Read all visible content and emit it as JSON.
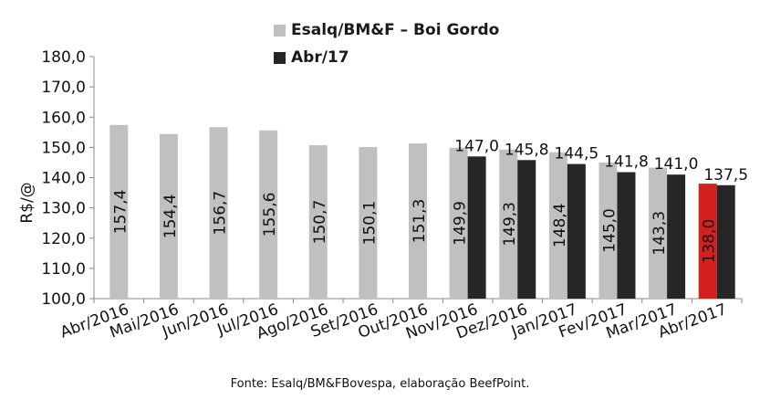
{
  "chart_data": {
    "type": "bar",
    "title": "",
    "xlabel": "",
    "ylabel": "R$/@",
    "ylim": [
      100,
      180
    ],
    "yticks": [
      "100,0",
      "110,0",
      "120,0",
      "130,0",
      "140,0",
      "150,0",
      "160,0",
      "170,0",
      "180,0"
    ],
    "categories": [
      "Abr/2016",
      "Mai/2016",
      "Jun/2016",
      "Jul/2016",
      "Ago/2016",
      "Set/2016",
      "Out/2016",
      "Nov/2016",
      "Dez/2016",
      "Jan/2017",
      "Fev/2017",
      "Mar/2017",
      "Abr/2017"
    ],
    "series": [
      {
        "name": "Esalq/BM&F – Boi Gordo",
        "color": "#c0c0c0",
        "highlight_color": "#d42020",
        "highlight_index": 12,
        "values": [
          157.4,
          154.4,
          156.7,
          155.6,
          150.7,
          150.1,
          151.3,
          149.9,
          149.3,
          148.4,
          145.0,
          143.3,
          138.0
        ],
        "labels": [
          "157,4",
          "154,4",
          "156,7",
          "155,6",
          "150,7",
          "150,1",
          "151,3",
          "149,9",
          "149,3",
          "148,4",
          "145,0",
          "143,3",
          "138,0"
        ]
      },
      {
        "name": "Abr/17",
        "color": "#262626",
        "values": [
          null,
          null,
          null,
          null,
          null,
          null,
          null,
          147.0,
          145.8,
          144.5,
          141.8,
          141.0,
          137.5
        ],
        "labels": [
          "",
          "",
          "",
          "",
          "",
          "",
          "",
          "147,0",
          "145,8",
          "144,5",
          "141,8",
          "141,0",
          "137,5"
        ]
      }
    ],
    "grid": false,
    "legend_position": "top"
  },
  "legend": {
    "items": [
      {
        "label": "Esalq/BM&F – Boi Gordo",
        "color": "#c0c0c0"
      },
      {
        "label": "Abr/17",
        "color": "#262626"
      }
    ]
  },
  "source": "Fonte: Esalq/BM&FBovespa, elaboração BeefPoint."
}
